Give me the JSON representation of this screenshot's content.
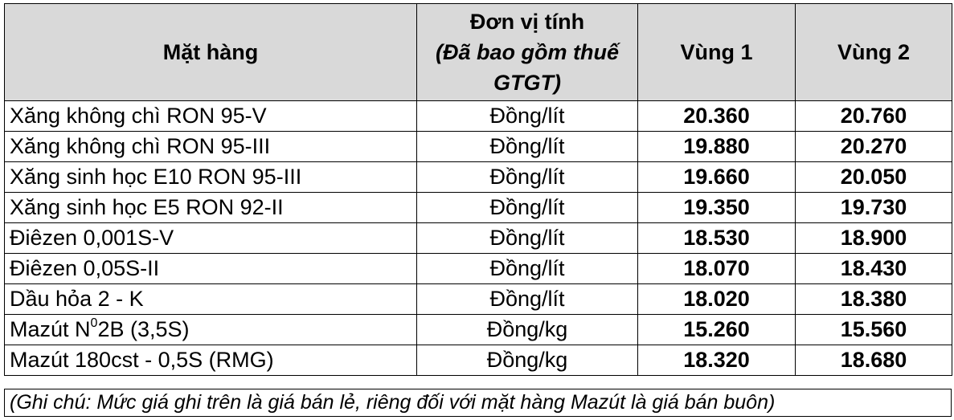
{
  "table": {
    "headers": {
      "item": "Mặt hàng",
      "unit_line1": "Đơn vị tính",
      "unit_line2": "(Đã bao gồm thuế",
      "unit_line3": "GTGT)",
      "region1": "Vùng 1",
      "region2": "Vùng 2"
    },
    "rows": [
      {
        "name": "Xăng không chì RON 95-V",
        "unit": "Đồng/lít",
        "v1": "20.360",
        "v2": "20.760"
      },
      {
        "name": "Xăng không chì RON 95-III",
        "unit": "Đồng/lít",
        "v1": "19.880",
        "v2": "20.270"
      },
      {
        "name": "Xăng sinh học E10 RON 95-III",
        "unit": "Đồng/lít",
        "v1": "19.660",
        "v2": "20.050"
      },
      {
        "name": "Xăng sinh học E5 RON 92-II",
        "unit": "Đồng/lít",
        "v1": "19.350",
        "v2": "19.730"
      },
      {
        "name": "Điêzen 0,001S-V",
        "unit": "Đồng/lít",
        "v1": "18.530",
        "v2": "18.900"
      },
      {
        "name": "Điêzen 0,05S-II",
        "unit": "Đồng/lít",
        "v1": "18.070",
        "v2": "18.430"
      },
      {
        "name": "Dầu hỏa 2 - K",
        "unit": "Đồng/lít",
        "v1": "18.020",
        "v2": "18.380"
      },
      {
        "name_prefix": "Mazút N",
        "name_sup": "0",
        "name_suffix": "2B (3,5S)",
        "unit": "Đồng/kg",
        "v1": "15.260",
        "v2": "15.560"
      },
      {
        "name": "Mazút 180cst - 0,5S (RMG)",
        "unit": "Đồng/kg",
        "v1": "18.320",
        "v2": "18.680"
      }
    ]
  },
  "note": "(Ghi chú: Mức giá ghi trên là giá bán lẻ, riêng đối với mặt hàng Mazút là giá bán buôn)"
}
